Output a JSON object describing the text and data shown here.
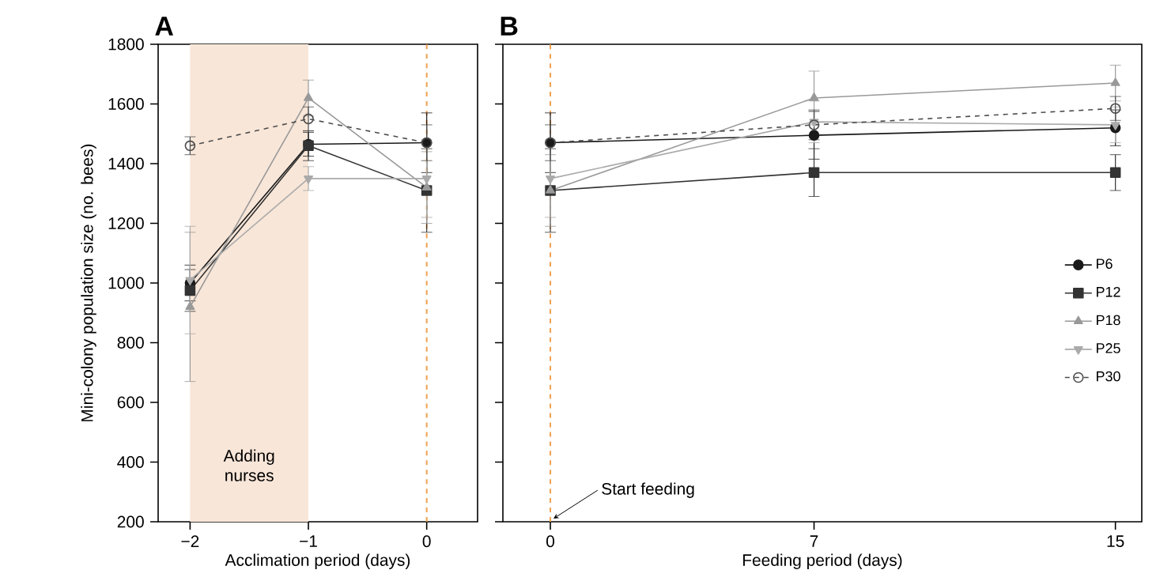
{
  "chart_data": [
    {
      "type": "line",
      "title": "A",
      "xlabel": "Acclimation period (days)",
      "ylabel": "Mini-colony population size (no. bees)",
      "xlim": [
        -2.27,
        0.43
      ],
      "xticks": [
        {
          "value": -2,
          "label": "−2"
        },
        {
          "value": -1,
          "label": "−1"
        },
        0
      ],
      "ylim": [
        200,
        1800
      ],
      "yticks": [
        200,
        400,
        600,
        800,
        1000,
        1200,
        1400,
        1600,
        1800
      ],
      "x": [
        -2,
        -1,
        0
      ],
      "series": [
        {
          "color": "#1a1a1a",
          "marker": "circle",
          "line_style": "solid",
          "values": [
            1000,
            1465,
            1470
          ],
          "errors": [
            60,
            40,
            100
          ]
        },
        {
          "color": "#333333",
          "marker": "square",
          "line_style": "solid",
          "values": [
            975,
            1460,
            1310
          ],
          "errors": [
            70,
            50,
            140
          ]
        },
        {
          "color": "#999999",
          "marker": "triangle",
          "line_style": "solid",
          "values": [
            920,
            1620,
            1320
          ],
          "errors": [
            250,
            60,
            120
          ]
        },
        {
          "color": "#aaaaaa",
          "marker": "triangle-down",
          "line_style": "solid",
          "values": [
            1010,
            1350,
            1350
          ],
          "errors": [
            180,
            40,
            130
          ]
        },
        {
          "color": "#4d4d4d",
          "marker": "circle-open",
          "line_style": "dashed",
          "values": [
            1460,
            1550,
            1470
          ],
          "errors": [
            30,
            40,
            60
          ]
        }
      ],
      "bands": [
        {
          "axis": "x",
          "from": -2,
          "to": -1,
          "label": "Adding nurses",
          "color": "#f8e6d8"
        }
      ],
      "ref_lines": [
        {
          "axis": "x",
          "value": 0,
          "color": "#f0a050",
          "line_style": "dashed"
        }
      ]
    },
    {
      "type": "line",
      "title": "B",
      "xlabel": "Feeding period (days)",
      "xlim": [
        -1.26,
        15.7
      ],
      "xticks": [
        0,
        7,
        15
      ],
      "ylim": [
        200,
        1800
      ],
      "yticks": [
        200,
        400,
        600,
        800,
        1000,
        1200,
        1400,
        1600,
        1800
      ],
      "tick_labels": "x",
      "x": [
        0,
        7,
        15
      ],
      "legend": "right",
      "series": [
        {
          "name": "P6",
          "color": "#1a1a1a",
          "marker": "circle",
          "line_style": "solid",
          "values": [
            1470,
            1495,
            1520
          ],
          "errors": [
            100,
            80,
            60
          ]
        },
        {
          "name": "P12",
          "color": "#333333",
          "marker": "square",
          "line_style": "solid",
          "values": [
            1310,
            1370,
            1370
          ],
          "errors": [
            140,
            80,
            60
          ]
        },
        {
          "name": "P18",
          "color": "#999999",
          "marker": "triangle",
          "line_style": "solid",
          "values": [
            1310,
            1620,
            1670
          ],
          "errors": [
            120,
            90,
            60
          ]
        },
        {
          "name": "P25",
          "color": "#aaaaaa",
          "marker": "triangle-down",
          "line_style": "solid",
          "values": [
            1350,
            1540,
            1530
          ],
          "errors": [
            130,
            70,
            60
          ]
        },
        {
          "name": "P30",
          "color": "#4d4d4d",
          "marker": "circle-open",
          "line_style": "dashed",
          "values": [
            1470,
            1530,
            1585
          ],
          "errors": [
            60,
            50,
            40
          ]
        }
      ],
      "ref_lines": [
        {
          "axis": "x",
          "value": 0,
          "label": "Start feeding",
          "color": "#f0a050",
          "line_style": "dashed"
        }
      ]
    }
  ]
}
